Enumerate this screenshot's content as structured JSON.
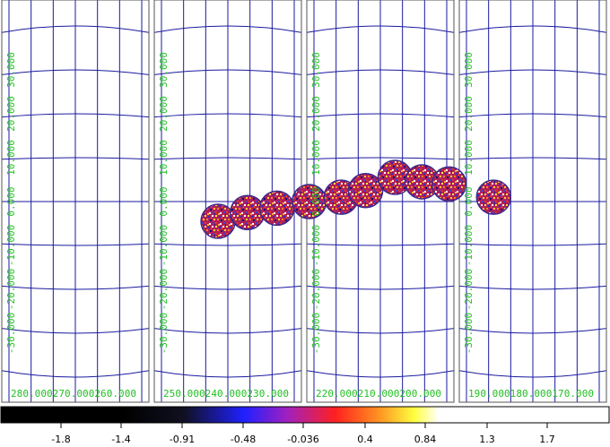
{
  "map": {
    "panels": [
      {
        "ra_labels": [
          "280.000",
          "270.000",
          "260.000"
        ]
      },
      {
        "ra_labels": [
          "250.000",
          "240.000",
          "230.000"
        ]
      },
      {
        "ra_labels": [
          "220.000",
          "210.000",
          "200.000"
        ]
      },
      {
        "ra_labels": [
          "190.000",
          "180.000",
          "170.000"
        ]
      }
    ],
    "dec_labels": [
      "30.000",
      "20.000",
      "10.000",
      "0.000",
      "-10.000",
      "-20.000",
      "-30.000"
    ],
    "colors": {
      "grid": "#1a1aa0",
      "label": "#22c022",
      "frame": "#555555"
    },
    "sources": [
      {
        "ra": 242.0,
        "dec": -4.5
      },
      {
        "ra": 236.0,
        "dec": -2.5
      },
      {
        "ra": 230.0,
        "dec": -1.5
      },
      {
        "ra": 224.5,
        "dec": 0.0
      },
      {
        "ra": 218.0,
        "dec": 1.0
      },
      {
        "ra": 213.0,
        "dec": 2.5
      },
      {
        "ra": 207.0,
        "dec": 5.5
      },
      {
        "ra": 201.5,
        "dec": 4.5
      },
      {
        "ra": 196.0,
        "dec": 4.0
      },
      {
        "ra": 188.0,
        "dec": 1.0
      }
    ]
  },
  "colorbar": {
    "ticks": [
      "-1.8",
      "-1.4",
      "-0.91",
      "-0.48",
      "-0.036",
      "0.4",
      "0.84",
      "1.3",
      "1.7"
    ]
  }
}
